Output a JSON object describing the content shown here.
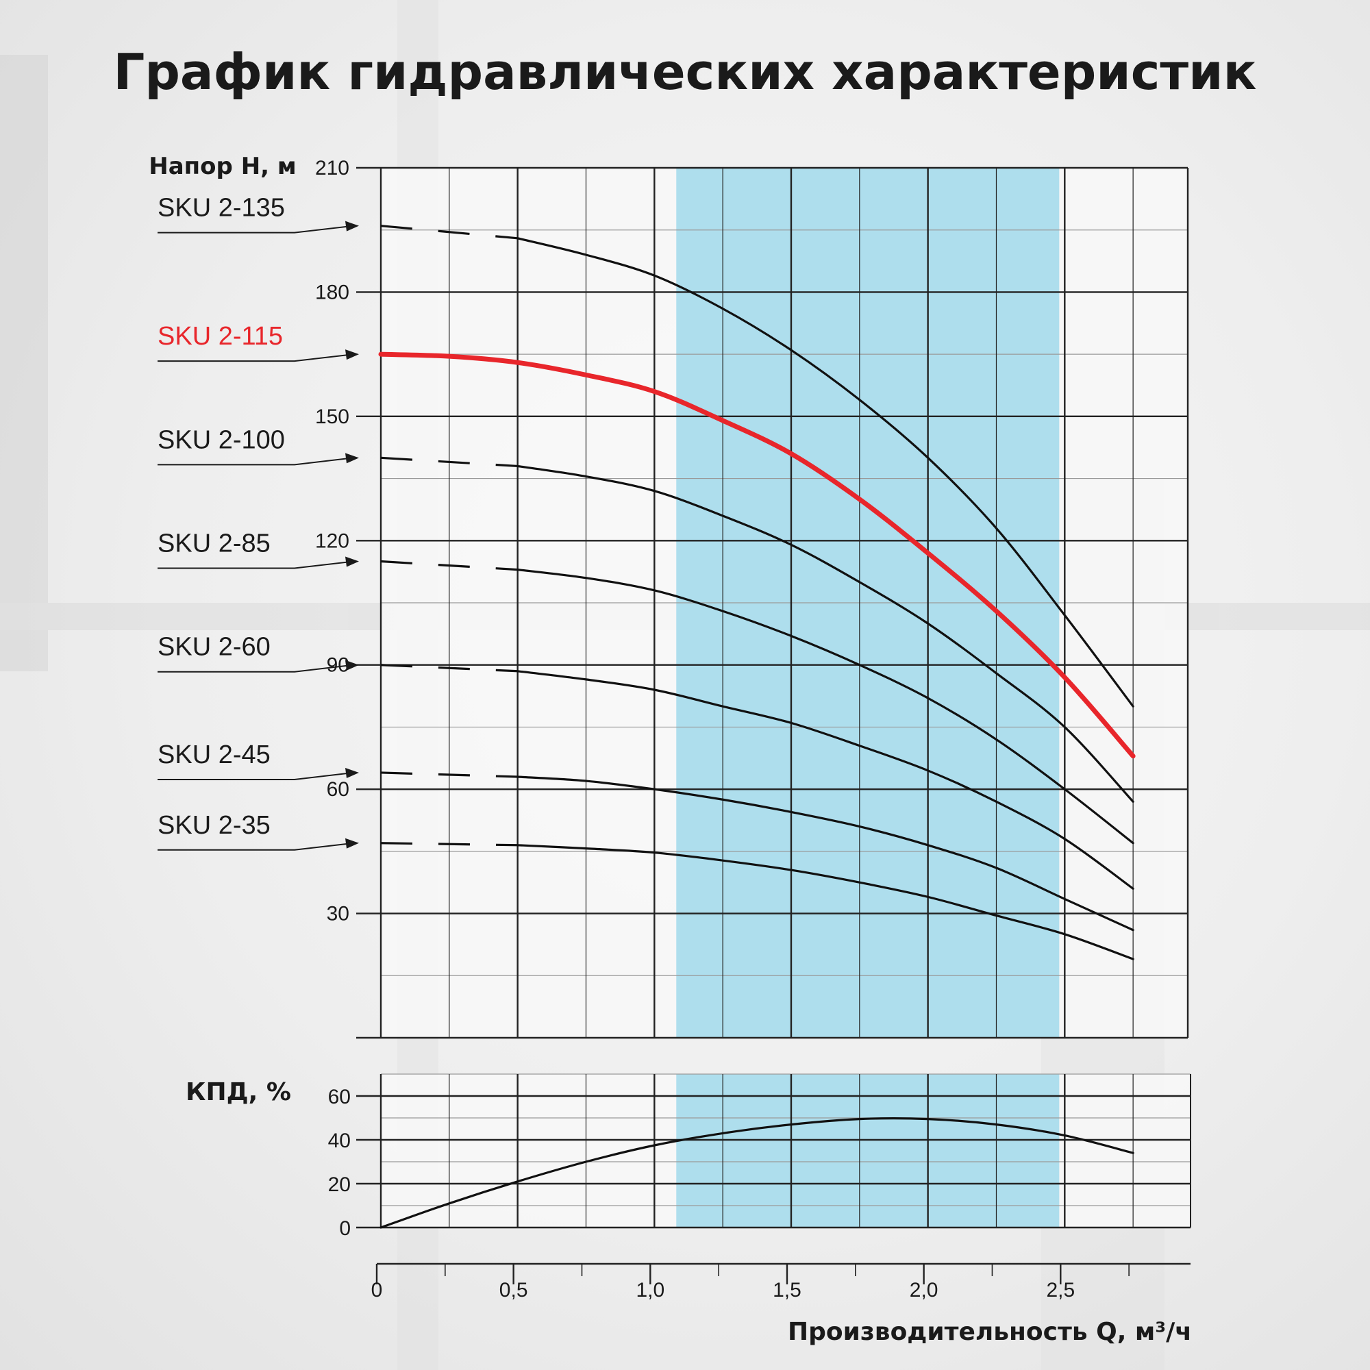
{
  "chart_data": [
    {
      "type": "line",
      "title": "График гидравлических характеристик",
      "ylabel": "Напор H, м",
      "xlabel": "Производительность Q, м³/ч",
      "xlim": [
        0,
        2.95
      ],
      "ylim": [
        0,
        210
      ],
      "yticks": [
        30,
        60,
        90,
        120,
        150,
        180,
        210
      ],
      "ytick_labels": [
        "30",
        "60",
        "90",
        "120",
        "150",
        "180",
        "210"
      ],
      "xticks": [
        0,
        0.5,
        1.0,
        1.5,
        2.0,
        2.5
      ],
      "xtick_labels": [
        "0",
        "0,5",
        "1,0",
        "1,5",
        "2,0",
        "2,5"
      ],
      "grid": true,
      "highlight_range": [
        1.08,
        2.48
      ],
      "highlight_color": "#aedeed",
      "series": [
        {
          "name": "SKU 2-135",
          "color": "#111111",
          "dashed_until": 0.5,
          "x": [
            0,
            0.5,
            0.75,
            1.0,
            1.25,
            1.5,
            1.75,
            2.0,
            2.25,
            2.5,
            2.75
          ],
          "y": [
            196,
            193,
            189,
            184,
            176,
            166,
            154,
            140,
            123,
            102,
            80
          ]
        },
        {
          "name": "SKU 2-115",
          "color": "#e8262b",
          "highlight": true,
          "dashed_until": 0,
          "x": [
            0,
            0.25,
            0.5,
            0.75,
            1.0,
            1.25,
            1.5,
            1.75,
            2.0,
            2.25,
            2.5,
            2.75
          ],
          "y": [
            165,
            164.5,
            163,
            160,
            156,
            149,
            141,
            130,
            117,
            103,
            87,
            68
          ]
        },
        {
          "name": "SKU 2-100",
          "color": "#111111",
          "dashed_until": 0.5,
          "x": [
            0,
            0.5,
            0.75,
            1.0,
            1.25,
            1.5,
            1.75,
            2.0,
            2.25,
            2.5,
            2.75
          ],
          "y": [
            140,
            138,
            135.5,
            132,
            126,
            119,
            110,
            100,
            88,
            75,
            57
          ]
        },
        {
          "name": "SKU 2-85",
          "color": "#111111",
          "dashed_until": 0.5,
          "x": [
            0,
            0.5,
            0.75,
            1.0,
            1.25,
            1.5,
            1.75,
            2.0,
            2.25,
            2.5,
            2.75
          ],
          "y": [
            115,
            113,
            111,
            108,
            103,
            97,
            90,
            82,
            72,
            60,
            47
          ]
        },
        {
          "name": "SKU 2-60",
          "color": "#111111",
          "dashed_until": 0.5,
          "x": [
            0,
            0.5,
            0.75,
            1.0,
            1.25,
            1.5,
            1.75,
            2.0,
            2.25,
            2.5,
            2.75
          ],
          "y": [
            90,
            88.5,
            86.5,
            84,
            80,
            76,
            70.5,
            64.5,
            57,
            48,
            36
          ]
        },
        {
          "name": "SKU 2-45",
          "color": "#111111",
          "dashed_until": 0.5,
          "x": [
            0,
            0.5,
            0.75,
            1.0,
            1.25,
            1.5,
            1.75,
            2.0,
            2.25,
            2.5,
            2.75
          ],
          "y": [
            64,
            63,
            62,
            60,
            57.5,
            54.5,
            51,
            46.5,
            41,
            33.5,
            26
          ]
        },
        {
          "name": "SKU 2-35",
          "color": "#111111",
          "dashed_until": 0.5,
          "x": [
            0,
            0.5,
            0.75,
            1.0,
            1.25,
            1.5,
            1.75,
            2.0,
            2.25,
            2.5,
            2.75
          ],
          "y": [
            47,
            46.5,
            45.7,
            44.7,
            42.8,
            40.5,
            37.5,
            34,
            29.5,
            25,
            19
          ]
        }
      ]
    },
    {
      "type": "line",
      "ylabel": "КПД, %",
      "xlabel": "Производительность Q, м³/ч",
      "xlim": [
        0,
        2.95
      ],
      "ylim": [
        0,
        70
      ],
      "yticks": [
        0,
        20,
        40,
        60
      ],
      "ytick_labels": [
        "0",
        "20",
        "40",
        "60"
      ],
      "grid": true,
      "highlight_range": [
        1.08,
        2.48
      ],
      "series": [
        {
          "name": "",
          "color": "#111111",
          "x": [
            0,
            0.25,
            0.5,
            0.75,
            1.0,
            1.25,
            1.5,
            1.75,
            2.0,
            2.25,
            2.5,
            2.75
          ],
          "y": [
            0,
            11,
            21,
            30,
            37.5,
            43,
            47,
            49.5,
            49.5,
            47,
            42,
            34
          ]
        }
      ]
    }
  ]
}
